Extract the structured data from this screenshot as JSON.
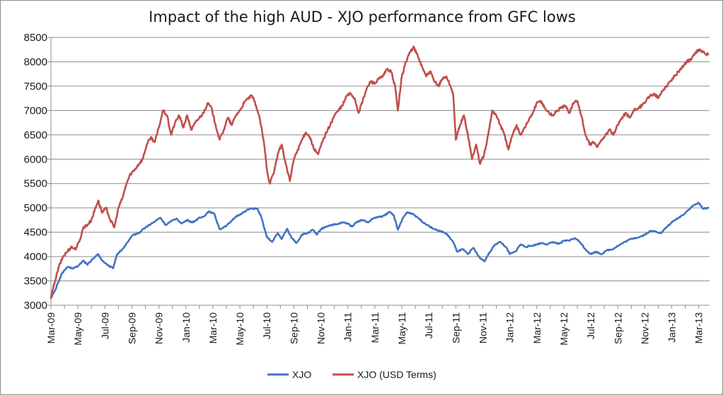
{
  "chart_data": {
    "type": "line",
    "title": "Impact of the high AUD - XJO performance from GFC lows",
    "xlabel": "",
    "ylabel": "",
    "ylim": [
      3000,
      8500
    ],
    "yticks": [
      3000,
      3500,
      4000,
      4500,
      5000,
      5500,
      6000,
      6500,
      7000,
      7500,
      8000,
      8500
    ],
    "grid": true,
    "legend": "bottom",
    "xrange": [
      0,
      48.8
    ],
    "x_tick_labels": [
      "Mar-09",
      "May-09",
      "Jul-09",
      "Sep-09",
      "Nov-09",
      "Jan-10",
      "Mar-10",
      "May-10",
      "Jul-10",
      "Sep-10",
      "Nov-10",
      "Jan-11",
      "Mar-11",
      "May-11",
      "Jul-11",
      "Sep-11",
      "Nov-11",
      "Jan-12",
      "Mar-12",
      "May-12",
      "Jul-12",
      "Sep-12",
      "Nov-12",
      "Jan-13",
      "Mar-13"
    ],
    "series": [
      {
        "name": "XJO",
        "color": "#4472c4",
        "points": [
          [
            0,
            3150
          ],
          [
            0.3,
            3300
          ],
          [
            0.8,
            3650
          ],
          [
            1.2,
            3780
          ],
          [
            1.6,
            3760
          ],
          [
            2,
            3800
          ],
          [
            2.4,
            3920
          ],
          [
            2.7,
            3830
          ],
          [
            3.1,
            3950
          ],
          [
            3.5,
            4050
          ],
          [
            3.8,
            3920
          ],
          [
            4.2,
            3820
          ],
          [
            4.6,
            3760
          ],
          [
            4.9,
            4050
          ],
          [
            5.3,
            4150
          ],
          [
            5.7,
            4300
          ],
          [
            6.1,
            4450
          ],
          [
            6.5,
            4480
          ],
          [
            6.9,
            4580
          ],
          [
            7.3,
            4650
          ],
          [
            7.7,
            4720
          ],
          [
            8.1,
            4800
          ],
          [
            8.5,
            4650
          ],
          [
            8.9,
            4720
          ],
          [
            9.3,
            4780
          ],
          [
            9.7,
            4680
          ],
          [
            10.1,
            4750
          ],
          [
            10.5,
            4700
          ],
          [
            10.9,
            4780
          ],
          [
            11.3,
            4820
          ],
          [
            11.7,
            4930
          ],
          [
            12.1,
            4880
          ],
          [
            12.5,
            4560
          ],
          [
            12.9,
            4620
          ],
          [
            13.3,
            4700
          ],
          [
            13.7,
            4820
          ],
          [
            14.1,
            4880
          ],
          [
            14.5,
            4950
          ],
          [
            14.9,
            4990
          ],
          [
            15.3,
            4980
          ],
          [
            15.6,
            4800
          ],
          [
            16,
            4400
          ],
          [
            16.4,
            4300
          ],
          [
            16.8,
            4480
          ],
          [
            17.1,
            4360
          ],
          [
            17.5,
            4570
          ],
          [
            17.8,
            4400
          ],
          [
            18.2,
            4280
          ],
          [
            18.6,
            4450
          ],
          [
            19,
            4480
          ],
          [
            19.4,
            4550
          ],
          [
            19.7,
            4450
          ],
          [
            20,
            4560
          ],
          [
            20.4,
            4620
          ],
          [
            20.8,
            4650
          ],
          [
            21.2,
            4660
          ],
          [
            21.6,
            4700
          ],
          [
            22,
            4680
          ],
          [
            22.3,
            4620
          ],
          [
            22.7,
            4720
          ],
          [
            23.1,
            4750
          ],
          [
            23.5,
            4700
          ],
          [
            23.9,
            4790
          ],
          [
            24.3,
            4810
          ],
          [
            24.7,
            4840
          ],
          [
            25.1,
            4920
          ],
          [
            25.4,
            4850
          ],
          [
            25.7,
            4550
          ],
          [
            26.1,
            4800
          ],
          [
            26.4,
            4910
          ],
          [
            26.8,
            4880
          ],
          [
            27.1,
            4820
          ],
          [
            27.5,
            4720
          ],
          [
            27.9,
            4650
          ],
          [
            28.3,
            4580
          ],
          [
            28.7,
            4530
          ],
          [
            29.1,
            4500
          ],
          [
            29.4,
            4440
          ],
          [
            29.8,
            4300
          ],
          [
            30.1,
            4100
          ],
          [
            30.5,
            4150
          ],
          [
            30.9,
            4050
          ],
          [
            31.3,
            4180
          ],
          [
            31.7,
            4000
          ],
          [
            32.1,
            3900
          ],
          [
            32.5,
            4080
          ],
          [
            32.9,
            4250
          ],
          [
            33.3,
            4300
          ],
          [
            33.7,
            4200
          ],
          [
            34,
            4050
          ],
          [
            34.4,
            4100
          ],
          [
            34.8,
            4250
          ],
          [
            35.2,
            4200
          ],
          [
            35.6,
            4220
          ],
          [
            36,
            4250
          ],
          [
            36.4,
            4280
          ],
          [
            36.8,
            4250
          ],
          [
            37.2,
            4300
          ],
          [
            37.6,
            4260
          ],
          [
            38,
            4320
          ],
          [
            38.4,
            4330
          ],
          [
            38.8,
            4380
          ],
          [
            39.2,
            4300
          ],
          [
            39.6,
            4150
          ],
          [
            40,
            4050
          ],
          [
            40.4,
            4100
          ],
          [
            40.8,
            4050
          ],
          [
            41.2,
            4130
          ],
          [
            41.6,
            4150
          ],
          [
            42,
            4220
          ],
          [
            42.4,
            4280
          ],
          [
            42.8,
            4340
          ],
          [
            43.2,
            4380
          ],
          [
            43.6,
            4400
          ],
          [
            44,
            4450
          ],
          [
            44.4,
            4520
          ],
          [
            44.8,
            4520
          ],
          [
            45.2,
            4480
          ],
          [
            45.6,
            4600
          ],
          [
            46,
            4700
          ],
          [
            46.4,
            4780
          ],
          [
            46.8,
            4850
          ],
          [
            47.2,
            4950
          ],
          [
            47.6,
            5050
          ],
          [
            48,
            5100
          ],
          [
            48.3,
            4990
          ],
          [
            48.7,
            5000
          ]
        ]
      },
      {
        "name": "XJO (USD Terms)",
        "color": "#c0504d",
        "points": [
          [
            0,
            3150
          ],
          [
            0.3,
            3500
          ],
          [
            0.6,
            3800
          ],
          [
            0.9,
            4000
          ],
          [
            1.2,
            4100
          ],
          [
            1.5,
            4200
          ],
          [
            1.8,
            4150
          ],
          [
            2.1,
            4300
          ],
          [
            2.4,
            4600
          ],
          [
            2.7,
            4650
          ],
          [
            3,
            4750
          ],
          [
            3.3,
            5000
          ],
          [
            3.5,
            5150
          ],
          [
            3.8,
            4900
          ],
          [
            4.1,
            5000
          ],
          [
            4.4,
            4750
          ],
          [
            4.7,
            4600
          ],
          [
            5,
            5000
          ],
          [
            5.3,
            5200
          ],
          [
            5.6,
            5500
          ],
          [
            5.9,
            5700
          ],
          [
            6.2,
            5780
          ],
          [
            6.5,
            5900
          ],
          [
            6.8,
            6000
          ],
          [
            7.1,
            6300
          ],
          [
            7.4,
            6450
          ],
          [
            7.7,
            6350
          ],
          [
            8,
            6650
          ],
          [
            8.3,
            7000
          ],
          [
            8.6,
            6900
          ],
          [
            8.9,
            6500
          ],
          [
            9.2,
            6750
          ],
          [
            9.5,
            6900
          ],
          [
            9.8,
            6650
          ],
          [
            10.1,
            6900
          ],
          [
            10.4,
            6600
          ],
          [
            10.7,
            6750
          ],
          [
            11,
            6850
          ],
          [
            11.3,
            6950
          ],
          [
            11.6,
            7150
          ],
          [
            11.9,
            7050
          ],
          [
            12.2,
            6700
          ],
          [
            12.5,
            6400
          ],
          [
            12.8,
            6600
          ],
          [
            13.1,
            6850
          ],
          [
            13.4,
            6700
          ],
          [
            13.7,
            6900
          ],
          [
            14,
            7000
          ],
          [
            14.3,
            7150
          ],
          [
            14.6,
            7250
          ],
          [
            14.9,
            7300
          ],
          [
            15.2,
            7100
          ],
          [
            15.5,
            6800
          ],
          [
            15.8,
            6300
          ],
          [
            16,
            5800
          ],
          [
            16.2,
            5500
          ],
          [
            16.5,
            5700
          ],
          [
            16.8,
            6100
          ],
          [
            17.1,
            6300
          ],
          [
            17.4,
            5900
          ],
          [
            17.7,
            5550
          ],
          [
            18,
            6000
          ],
          [
            18.3,
            6200
          ],
          [
            18.6,
            6400
          ],
          [
            18.9,
            6550
          ],
          [
            19.2,
            6450
          ],
          [
            19.5,
            6200
          ],
          [
            19.8,
            6100
          ],
          [
            20.1,
            6350
          ],
          [
            20.4,
            6550
          ],
          [
            20.7,
            6700
          ],
          [
            21,
            6900
          ],
          [
            21.3,
            7000
          ],
          [
            21.6,
            7100
          ],
          [
            21.9,
            7300
          ],
          [
            22.2,
            7350
          ],
          [
            22.5,
            7250
          ],
          [
            22.8,
            6950
          ],
          [
            23.1,
            7200
          ],
          [
            23.4,
            7450
          ],
          [
            23.7,
            7600
          ],
          [
            24,
            7550
          ],
          [
            24.3,
            7650
          ],
          [
            24.6,
            7700
          ],
          [
            24.9,
            7850
          ],
          [
            25.2,
            7800
          ],
          [
            25.5,
            7500
          ],
          [
            25.7,
            7000
          ],
          [
            26,
            7700
          ],
          [
            26.3,
            8000
          ],
          [
            26.6,
            8200
          ],
          [
            26.9,
            8300
          ],
          [
            27.2,
            8100
          ],
          [
            27.5,
            7900
          ],
          [
            27.8,
            7700
          ],
          [
            28.1,
            7800
          ],
          [
            28.4,
            7600
          ],
          [
            28.7,
            7500
          ],
          [
            29,
            7650
          ],
          [
            29.3,
            7700
          ],
          [
            29.6,
            7500
          ],
          [
            29.8,
            7350
          ],
          [
            30,
            6400
          ],
          [
            30.3,
            6700
          ],
          [
            30.6,
            6900
          ],
          [
            30.9,
            6500
          ],
          [
            31.2,
            6000
          ],
          [
            31.5,
            6300
          ],
          [
            31.8,
            5900
          ],
          [
            32.1,
            6100
          ],
          [
            32.4,
            6500
          ],
          [
            32.7,
            7000
          ],
          [
            33,
            6900
          ],
          [
            33.3,
            6700
          ],
          [
            33.6,
            6500
          ],
          [
            33.9,
            6200
          ],
          [
            34.2,
            6500
          ],
          [
            34.5,
            6700
          ],
          [
            34.8,
            6500
          ],
          [
            35.1,
            6650
          ],
          [
            35.4,
            6800
          ],
          [
            35.7,
            6950
          ],
          [
            36,
            7150
          ],
          [
            36.3,
            7200
          ],
          [
            36.6,
            7050
          ],
          [
            36.9,
            6950
          ],
          [
            37.2,
            6900
          ],
          [
            37.5,
            7000
          ],
          [
            37.8,
            7050
          ],
          [
            38.1,
            7100
          ],
          [
            38.4,
            6950
          ],
          [
            38.7,
            7150
          ],
          [
            39,
            7200
          ],
          [
            39.3,
            6900
          ],
          [
            39.6,
            6500
          ],
          [
            39.9,
            6300
          ],
          [
            40.2,
            6350
          ],
          [
            40.5,
            6250
          ],
          [
            40.8,
            6400
          ],
          [
            41.1,
            6500
          ],
          [
            41.4,
            6600
          ],
          [
            41.7,
            6500
          ],
          [
            42,
            6700
          ],
          [
            42.3,
            6850
          ],
          [
            42.6,
            6950
          ],
          [
            42.9,
            6850
          ],
          [
            43.2,
            7000
          ],
          [
            43.5,
            7050
          ],
          [
            43.8,
            7100
          ],
          [
            44.1,
            7200
          ],
          [
            44.4,
            7300
          ],
          [
            44.7,
            7350
          ],
          [
            45,
            7250
          ],
          [
            45.3,
            7400
          ],
          [
            45.6,
            7500
          ],
          [
            45.9,
            7600
          ],
          [
            46.2,
            7700
          ],
          [
            46.5,
            7800
          ],
          [
            46.8,
            7900
          ],
          [
            47.1,
            8000
          ],
          [
            47.4,
            8050
          ],
          [
            47.7,
            8150
          ],
          [
            48,
            8250
          ],
          [
            48.3,
            8200
          ],
          [
            48.7,
            8150
          ]
        ]
      }
    ]
  }
}
